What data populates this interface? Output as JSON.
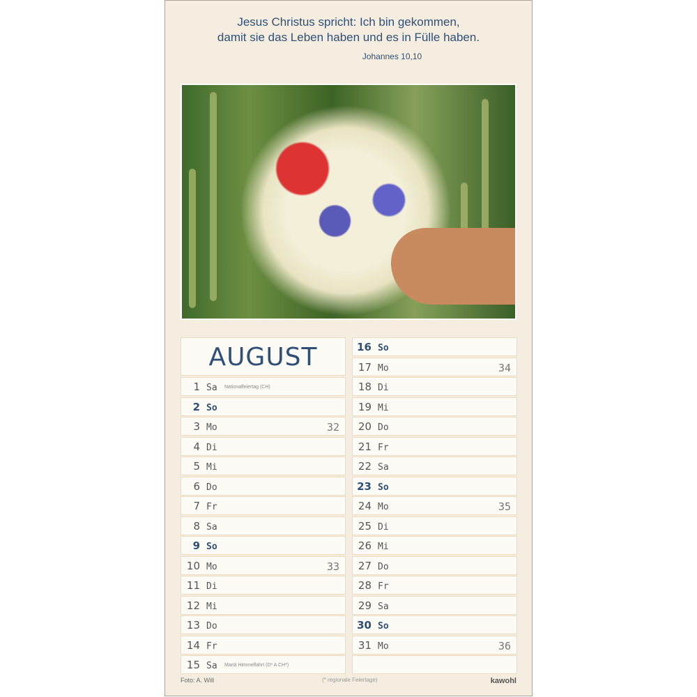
{
  "quote": {
    "line1": "Jesus Christus spricht: Ich bin gekommen,",
    "line2": "damit sie das Leben haben und es in Fülle haben.",
    "source": "Johannes 10,10"
  },
  "month": "AUGUST",
  "days_left": [
    {
      "d": "1",
      "w": "Sa",
      "hol": "Nationalfeiertag (CH)"
    },
    {
      "d": "2",
      "w": "So",
      "sun": true
    },
    {
      "d": "3",
      "w": "Mo",
      "kw": "32"
    },
    {
      "d": "4",
      "w": "Di"
    },
    {
      "d": "5",
      "w": "Mi"
    },
    {
      "d": "6",
      "w": "Do"
    },
    {
      "d": "7",
      "w": "Fr"
    },
    {
      "d": "8",
      "w": "Sa"
    },
    {
      "d": "9",
      "w": "So",
      "sun": true
    },
    {
      "d": "10",
      "w": "Mo",
      "kw": "33"
    },
    {
      "d": "11",
      "w": "Di"
    },
    {
      "d": "12",
      "w": "Mi"
    },
    {
      "d": "13",
      "w": "Do"
    },
    {
      "d": "14",
      "w": "Fr"
    },
    {
      "d": "15",
      "w": "Sa",
      "hol": "Mariä Himmelfahrt (D* A CH*)"
    }
  ],
  "days_right": [
    {
      "d": "16",
      "w": "So",
      "sun": true
    },
    {
      "d": "17",
      "w": "Mo",
      "kw": "34"
    },
    {
      "d": "18",
      "w": "Di"
    },
    {
      "d": "19",
      "w": "Mi"
    },
    {
      "d": "20",
      "w": "Do"
    },
    {
      "d": "21",
      "w": "Fr"
    },
    {
      "d": "22",
      "w": "Sa"
    },
    {
      "d": "23",
      "w": "So",
      "sun": true
    },
    {
      "d": "24",
      "w": "Mo",
      "kw": "35"
    },
    {
      "d": "25",
      "w": "Di"
    },
    {
      "d": "26",
      "w": "Mi"
    },
    {
      "d": "27",
      "w": "Do"
    },
    {
      "d": "28",
      "w": "Fr"
    },
    {
      "d": "29",
      "w": "Sa"
    },
    {
      "d": "30",
      "w": "So",
      "sun": true
    },
    {
      "d": "31",
      "w": "Mo",
      "kw": "36"
    }
  ],
  "footer": {
    "photo_credit": "Foto: A. Will",
    "note": "(* regionale Feiertage)",
    "brand": "kawohl"
  },
  "colors": {
    "accent": "#2f4f78",
    "background": "#f5eee0"
  }
}
